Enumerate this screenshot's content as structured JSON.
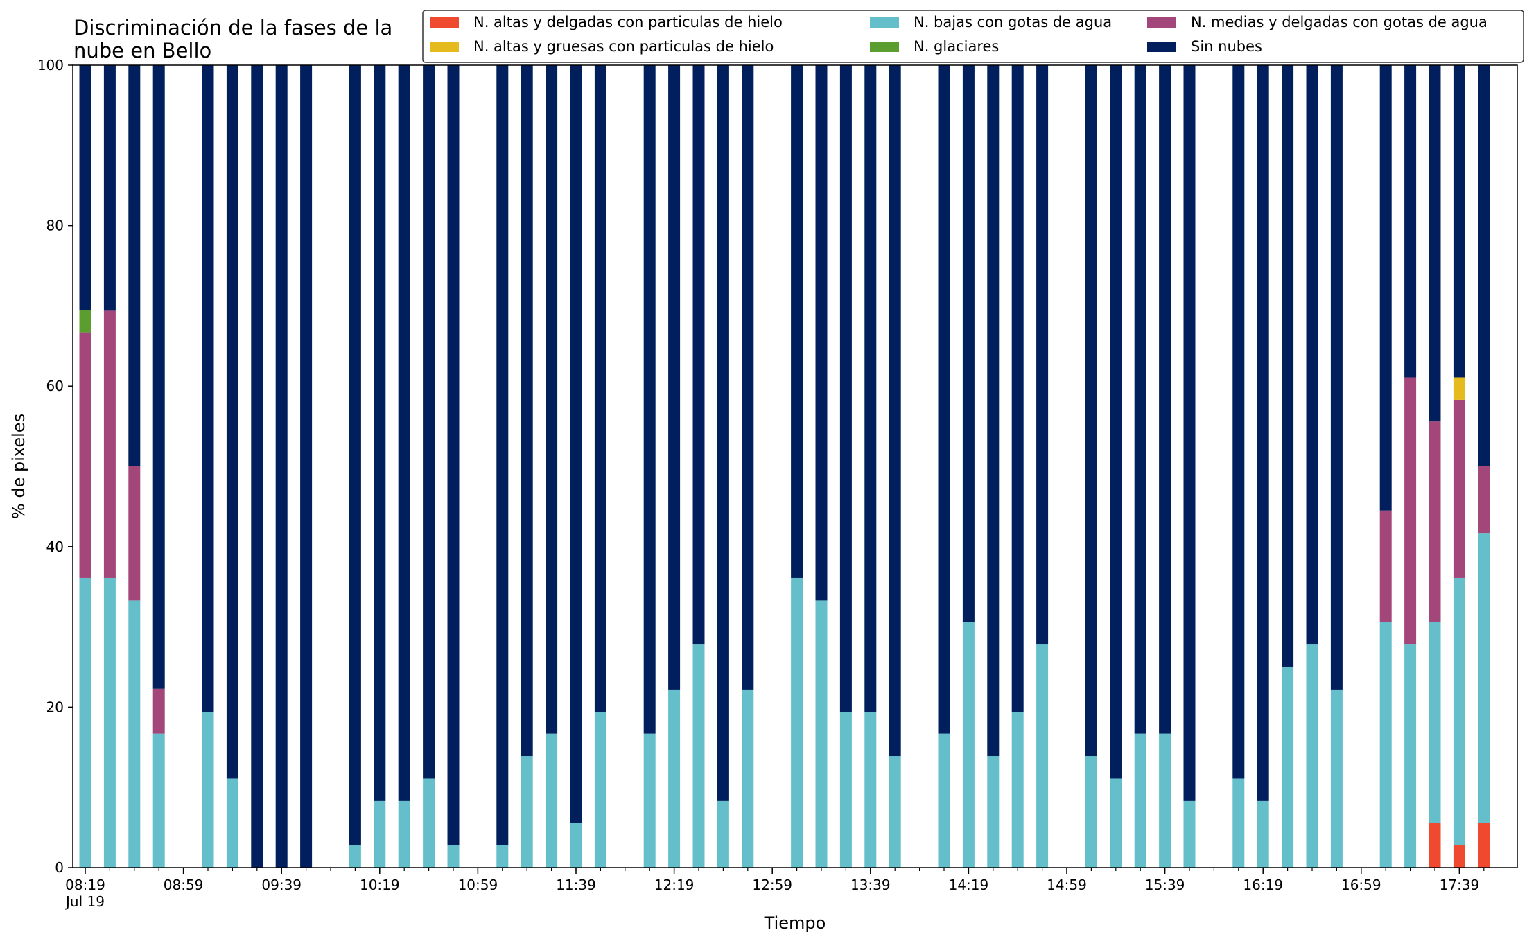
{
  "chart_data": {
    "type": "bar",
    "stacked": true,
    "title_lines": [
      "Discriminación de la fases de la",
      "nube en Bello"
    ],
    "xlabel": "Tiempo",
    "ylabel": "% de pixeles",
    "ylim": [
      0,
      100
    ],
    "yticks": [
      "0",
      "20",
      "40",
      "60",
      "80",
      "100"
    ],
    "grid": false,
    "legend_position": "top-right",
    "x_tick_labels": [
      {
        "slot": 0,
        "lines": [
          "08:19",
          "Jul 19"
        ]
      },
      {
        "slot": 4,
        "lines": [
          "08:59"
        ]
      },
      {
        "slot": 8,
        "lines": [
          "09:39"
        ]
      },
      {
        "slot": 12,
        "lines": [
          "10:19"
        ]
      },
      {
        "slot": 16,
        "lines": [
          "10:59"
        ]
      },
      {
        "slot": 20,
        "lines": [
          "11:39"
        ]
      },
      {
        "slot": 24,
        "lines": [
          "12:19"
        ]
      },
      {
        "slot": 28,
        "lines": [
          "12:59"
        ]
      },
      {
        "slot": 32,
        "lines": [
          "13:39"
        ]
      },
      {
        "slot": 36,
        "lines": [
          "14:19"
        ]
      },
      {
        "slot": 40,
        "lines": [
          "14:59"
        ]
      },
      {
        "slot": 44,
        "lines": [
          "15:39"
        ]
      },
      {
        "slot": 48,
        "lines": [
          "16:19"
        ]
      },
      {
        "slot": 52,
        "lines": [
          "16:59"
        ]
      },
      {
        "slot": 56,
        "lines": [
          "17:39"
        ]
      }
    ],
    "series": [
      {
        "name": "N. altas y delgadas con particulas de hielo",
        "color": "#ef4a2f",
        "values": [
          0,
          0,
          0,
          0,
          null,
          0,
          0,
          0,
          0,
          0,
          null,
          0,
          0,
          0,
          0,
          0,
          null,
          0,
          0,
          0,
          0,
          0,
          null,
          0,
          0,
          0,
          0,
          0,
          null,
          0,
          0,
          0,
          0,
          0,
          null,
          0,
          0,
          0,
          0,
          0,
          null,
          0,
          0,
          0,
          0,
          0,
          null,
          0,
          0,
          0,
          0,
          0,
          null,
          0,
          0,
          5.6,
          2.8,
          5.6
        ]
      },
      {
        "name": "N. bajas con gotas de agua",
        "color": "#64bfcb",
        "values": [
          36.1,
          36.1,
          33.3,
          16.7,
          null,
          19.4,
          11.1,
          0,
          0,
          0,
          null,
          2.8,
          8.3,
          8.3,
          11.1,
          2.8,
          null,
          2.8,
          13.9,
          16.7,
          5.6,
          19.4,
          null,
          16.7,
          22.2,
          27.8,
          8.3,
          22.2,
          null,
          36.1,
          33.3,
          19.4,
          19.4,
          13.9,
          null,
          16.7,
          30.6,
          13.9,
          19.4,
          27.8,
          null,
          13.9,
          11.1,
          16.7,
          16.7,
          8.3,
          null,
          11.1,
          8.3,
          25,
          27.8,
          22.2,
          null,
          30.6,
          27.8,
          25,
          33.3,
          36.1
        ]
      },
      {
        "name": "N. medias y delgadas con gotas de agua",
        "color": "#a3467a",
        "values": [
          30.6,
          33.3,
          16.7,
          5.6,
          null,
          0,
          0,
          0,
          0,
          0,
          null,
          0,
          0,
          0,
          0,
          0,
          null,
          0,
          0,
          0,
          0,
          0,
          null,
          0,
          0,
          0,
          0,
          0,
          null,
          0,
          0,
          0,
          0,
          0,
          null,
          0,
          0,
          0,
          0,
          0,
          null,
          0,
          0,
          0,
          0,
          0,
          null,
          0,
          0,
          0,
          0,
          0,
          null,
          13.9,
          33.3,
          25,
          22.2,
          8.3
        ]
      },
      {
        "name": "N. altas y gruesas con particulas de hielo",
        "color": "#e5ba1d",
        "values": [
          0,
          0,
          0,
          0,
          null,
          0,
          0,
          0,
          0,
          0,
          null,
          0,
          0,
          0,
          0,
          0,
          null,
          0,
          0,
          0,
          0,
          0,
          null,
          0,
          0,
          0,
          0,
          0,
          null,
          0,
          0,
          0,
          0,
          0,
          null,
          0,
          0,
          0,
          0,
          0,
          null,
          0,
          0,
          0,
          0,
          0,
          null,
          0,
          0,
          0,
          0,
          0,
          null,
          0,
          0,
          0,
          2.8,
          0
        ]
      },
      {
        "name": "N. glaciares",
        "color": "#5b9e2f",
        "values": [
          2.8,
          0,
          0,
          0,
          null,
          0,
          0,
          0,
          0,
          0,
          null,
          0,
          0,
          0,
          0,
          0,
          null,
          0,
          0,
          0,
          0,
          0,
          null,
          0,
          0,
          0,
          0,
          0,
          null,
          0,
          0,
          0,
          0,
          0,
          null,
          0,
          0,
          0,
          0,
          0,
          null,
          0,
          0,
          0,
          0,
          0,
          null,
          0,
          0,
          0,
          0,
          0,
          null,
          0,
          0,
          0,
          0,
          0
        ]
      },
      {
        "name": "Sin nubes",
        "color": "#001f5c",
        "values": [
          30.5,
          30.6,
          50,
          77.7,
          null,
          80.6,
          88.9,
          100,
          100,
          100,
          null,
          97.2,
          91.7,
          91.7,
          88.9,
          97.2,
          null,
          97.2,
          86.1,
          83.3,
          94.4,
          80.6,
          null,
          83.3,
          77.8,
          72.2,
          91.7,
          77.8,
          null,
          63.9,
          66.7,
          80.6,
          80.6,
          86.1,
          null,
          83.3,
          69.4,
          86.1,
          80.6,
          72.2,
          null,
          86.1,
          88.9,
          83.3,
          83.3,
          91.7,
          null,
          88.9,
          91.7,
          75,
          72.2,
          77.8,
          null,
          55.5,
          38.9,
          44.4,
          38.9,
          50
        ]
      }
    ],
    "legend_order": [
      "N. altas y delgadas con particulas de hielo",
      "N. altas y gruesas con particulas de hielo",
      "N. bajas con gotas de agua",
      "N. glaciares",
      "N. medias y delgadas con gotas de agua",
      "Sin nubes"
    ]
  }
}
